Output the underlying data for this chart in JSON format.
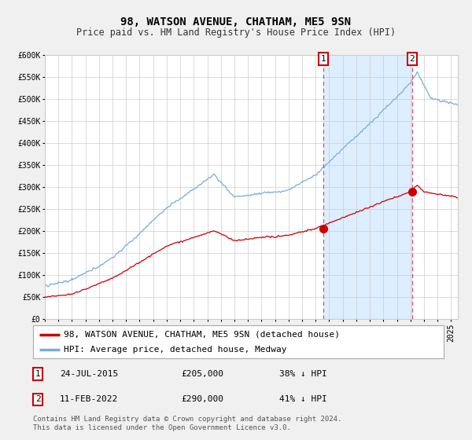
{
  "title": "98, WATSON AVENUE, CHATHAM, ME5 9SN",
  "subtitle": "Price paid vs. HM Land Registry's House Price Index (HPI)",
  "ylim": [
    0,
    600000
  ],
  "yticks": [
    0,
    50000,
    100000,
    150000,
    200000,
    250000,
    300000,
    350000,
    400000,
    450000,
    500000,
    550000,
    600000
  ],
  "ytick_labels": [
    "£0",
    "£50K",
    "£100K",
    "£150K",
    "£200K",
    "£250K",
    "£300K",
    "£350K",
    "£400K",
    "£450K",
    "£500K",
    "£550K",
    "£600K"
  ],
  "xlim_start": 1995.0,
  "xlim_end": 2025.5,
  "bg_color": "#f0f0f0",
  "plot_bg_color": "#ffffff",
  "grid_color": "#cccccc",
  "sale1_date": 2015.56,
  "sale1_price": 205000,
  "sale2_date": 2022.12,
  "sale2_price": 290000,
  "red_line_color": "#cc0000",
  "blue_line_color": "#7aabdb",
  "shade_color": "#ddeeff",
  "sale_dot_color": "#cc0000",
  "dashed_line_color": "#dd4444",
  "legend_label1": "98, WATSON AVENUE, CHATHAM, ME5 9SN (detached house)",
  "legend_label2": "HPI: Average price, detached house, Medway",
  "note1_date": "24-JUL-2015",
  "note1_price": "£205,000",
  "note1_hpi": "38% ↓ HPI",
  "note2_date": "11-FEB-2022",
  "note2_price": "£290,000",
  "note2_hpi": "41% ↓ HPI",
  "footer": "Contains HM Land Registry data © Crown copyright and database right 2024.\nThis data is licensed under the Open Government Licence v3.0.",
  "title_fontsize": 10,
  "subtitle_fontsize": 8.5,
  "tick_fontsize": 7,
  "legend_fontsize": 8,
  "note_fontsize": 8,
  "footer_fontsize": 6.5
}
